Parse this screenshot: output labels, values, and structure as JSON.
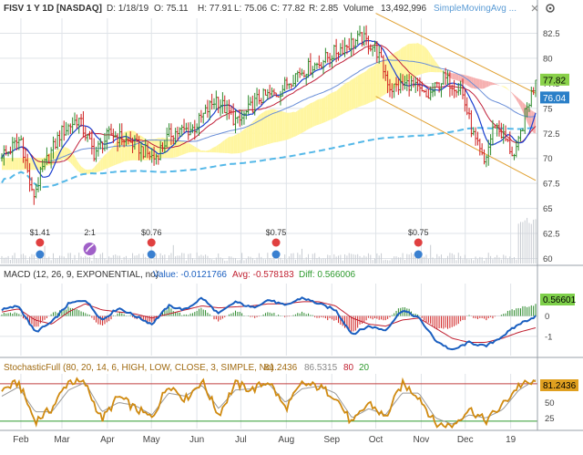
{
  "header": {
    "symbol": "FISV 1 Y 1D [NASDAQ]",
    "date": "D: 1/18/19",
    "open": "O: 75.11",
    "high": "H: 77.91",
    "low": "L: 75.06",
    "close": "C: 77.82",
    "range": "R: 2.85",
    "volume_label": "Volume",
    "volume_value": "13,492,996",
    "study_label": "SimpleMovingAvg ..."
  },
  "macd_header": {
    "title": "MACD (12, 26, 9, EXPONENTIAL, no)",
    "value": "Value: -0.0121766",
    "avg": "Avg: -0.578183",
    "diff": "Diff: 0.566006"
  },
  "stoch_header": {
    "title": "StochasticFull (80, 20, 14, 6, HIGH, LOW, CLOSE, 3, SIMPLE, No)",
    "v1": "81.2436",
    "v2": "86.5315",
    "v3": "80",
    "v4": "20"
  },
  "colors": {
    "up": "#2e8b2e",
    "down": "#d02020",
    "price_bar": "#111111",
    "sma_fast": "#1a3fd0",
    "sma_mid": "#c0203a",
    "sma_slow": "#6a8fd8",
    "sma_long": "#55b8e8",
    "channel": "#e0a030",
    "cloud_up": "#fff6a0",
    "cloud_down": "#f6b0b0",
    "macd_line": "#1a5fc0",
    "macd_avg": "#c02030",
    "stoch_k": "#d08a10",
    "stoch_d": "#999999",
    "grid": "#dfe3e8",
    "close_tag": "#8ad14a",
    "ma_tag": "#2a7fc8"
  },
  "chart_data": [
    {
      "type": "candlestick",
      "panel": "price",
      "x_axis_ticks": [
        "Feb",
        "Mar",
        "Apr",
        "May",
        "Jun",
        "Jul",
        "Aug",
        "Sep",
        "Oct",
        "Nov",
        "Dec",
        "19"
      ],
      "y_ticks": [
        60,
        62.5,
        65,
        67.5,
        70,
        72.5,
        75,
        77.5,
        80,
        82.5
      ],
      "ylim": [
        59.5,
        84
      ],
      "close_path": [
        {
          "x": "2018-01-22",
          "y": 70.5
        },
        {
          "x": "2018-02-01",
          "y": 72.0
        },
        {
          "x": "2018-02-09",
          "y": 66.0
        },
        {
          "x": "2018-02-16",
          "y": 69.0
        },
        {
          "x": "2018-02-28",
          "y": 72.5
        },
        {
          "x": "2018-03-12",
          "y": 74.0
        },
        {
          "x": "2018-03-23",
          "y": 70.5
        },
        {
          "x": "2018-04-03",
          "y": 72.5
        },
        {
          "x": "2018-04-18",
          "y": 71.5
        },
        {
          "x": "2018-05-03",
          "y": 70.0
        },
        {
          "x": "2018-05-14",
          "y": 72.5
        },
        {
          "x": "2018-05-30",
          "y": 73.0
        },
        {
          "x": "2018-06-14",
          "y": 76.0
        },
        {
          "x": "2018-06-29",
          "y": 73.5
        },
        {
          "x": "2018-07-13",
          "y": 76.0
        },
        {
          "x": "2018-07-26",
          "y": 76.5
        },
        {
          "x": "2018-08-08",
          "y": 78.5
        },
        {
          "x": "2018-08-23",
          "y": 79.5
        },
        {
          "x": "2018-09-07",
          "y": 81.0
        },
        {
          "x": "2018-09-21",
          "y": 82.0
        },
        {
          "x": "2018-10-01",
          "y": 81.0
        },
        {
          "x": "2018-10-11",
          "y": 77.0
        },
        {
          "x": "2018-10-24",
          "y": 77.5
        },
        {
          "x": "2018-11-05",
          "y": 76.0
        },
        {
          "x": "2018-11-16",
          "y": 78.0
        },
        {
          "x": "2018-11-28",
          "y": 77.0
        },
        {
          "x": "2018-12-07",
          "y": 72.0
        },
        {
          "x": "2018-12-14",
          "y": 69.5
        },
        {
          "x": "2018-12-21",
          "y": 73.5
        },
        {
          "x": "2018-12-28",
          "y": 72.0
        },
        {
          "x": "2019-01-04",
          "y": 70.0
        },
        {
          "x": "2019-01-11",
          "y": 74.5
        },
        {
          "x": "2019-01-18",
          "y": 77.82
        }
      ],
      "last_close": "77.82",
      "ma_value": "76.04",
      "events": [
        {
          "x": "2018-02-14",
          "label": "$1.41",
          "kind": "earnings"
        },
        {
          "x": "2018-03-20",
          "label": "2:1",
          "kind": "split"
        },
        {
          "x": "2018-05-01",
          "label": "$0.76",
          "kind": "earnings"
        },
        {
          "x": "2018-07-25",
          "label": "$0.75",
          "kind": "earnings"
        },
        {
          "x": "2018-10-30",
          "label": "$0.75",
          "kind": "earnings"
        }
      ]
    },
    {
      "type": "line",
      "panel": "macd",
      "y_ticks": [
        -1,
        0
      ],
      "ylim": [
        -1.95,
        1.55
      ],
      "series": [
        {
          "values": [
            0.3,
            0.5,
            -0.8,
            -0.3,
            0.6,
            0.8,
            -0.2,
            0.4,
            0.0,
            -0.4,
            0.5,
            0.3,
            0.9,
            0.1,
            0.7,
            0.4,
            0.8,
            0.5,
            0.9,
            0.6,
            0.3,
            -0.9,
            -0.5,
            -0.7,
            0.3,
            -0.1,
            -1.2,
            -1.7,
            -1.3,
            -1.5,
            -1.0,
            -0.4,
            -0.01
          ]
        },
        {
          "values": [
            0.2,
            0.35,
            -0.2,
            -0.4,
            0.2,
            0.6,
            0.3,
            0.2,
            0.1,
            -0.1,
            0.1,
            0.3,
            0.5,
            0.4,
            0.45,
            0.5,
            0.6,
            0.6,
            0.7,
            0.7,
            0.5,
            -0.1,
            -0.4,
            -0.5,
            -0.2,
            -0.1,
            -0.6,
            -1.1,
            -1.3,
            -1.3,
            -1.1,
            -0.8,
            -0.58
          ]
        }
      ]
    },
    {
      "type": "line",
      "panel": "stochastic",
      "y_ticks": [
        25,
        50,
        75
      ],
      "ylim": [
        8,
        96
      ],
      "series": [
        {
          "values": [
            70,
            82,
            20,
            40,
            85,
            80,
            22,
            60,
            40,
            25,
            80,
            55,
            85,
            30,
            80,
            70,
            85,
            40,
            80,
            75,
            60,
            15,
            50,
            25,
            80,
            60,
            15,
            12,
            40,
            20,
            45,
            78,
            81.2
          ]
        },
        {
          "values": [
            60,
            75,
            35,
            35,
            70,
            82,
            35,
            50,
            45,
            30,
            65,
            60,
            78,
            40,
            70,
            72,
            80,
            50,
            72,
            76,
            65,
            25,
            40,
            30,
            65,
            65,
            25,
            15,
            30,
            25,
            38,
            70,
            86.5
          ]
        }
      ]
    }
  ]
}
